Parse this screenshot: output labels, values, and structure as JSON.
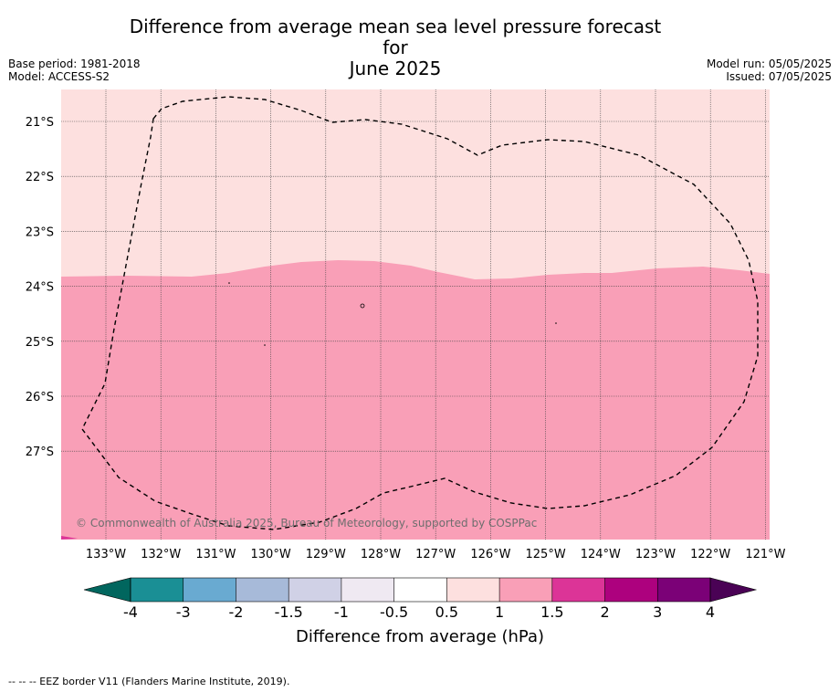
{
  "title_line1": "Difference from average mean sea level pressure forecast for",
  "title_line2": "June 2025",
  "base_period": "Base period: 1981-2018",
  "model": "Model: ACCESS-S2",
  "model_run": "Model run: 05/05/2025",
  "issued": "Issued: 07/05/2025",
  "copyright": "© Commonwealth of Australia 2025, Bureau of Meteorology, supported by COSPPac",
  "map": {
    "lat_labels": [
      "21°S",
      "22°S",
      "23°S",
      "24°S",
      "25°S",
      "26°S",
      "27°S"
    ],
    "lon_labels": [
      "133°W",
      "132°W",
      "131°W",
      "130°W",
      "129°W",
      "128°W",
      "127°W",
      "126°W",
      "125°W",
      "124°W",
      "123°W",
      "122°W",
      "121°W"
    ],
    "fill_colors": {
      "light_band": "#fde0df",
      "main_band": "#f99fb7",
      "corner": "#dc3497"
    },
    "eez_line_style": "dashed"
  },
  "colorbar": {
    "ticks": [
      "-4",
      "-3",
      "-2",
      "-1.5",
      "-1",
      "-0.5",
      "0.5",
      "1",
      "1.5",
      "2",
      "3",
      "4"
    ],
    "colors": [
      "#1a8f95",
      "#69aad1",
      "#a7bad9",
      "#d0d1e6",
      "#efe9f2",
      "#ffffff",
      "#fde0df",
      "#f99fb7",
      "#dc3497",
      "#ad017e",
      "#7b0177"
    ],
    "under_color": "#01665e",
    "over_color": "#4a0255",
    "label": "Difference from average (hPa)"
  },
  "footnote": "--  --  -- EEZ border V11 (Flanders Marine Institute, 2019)."
}
